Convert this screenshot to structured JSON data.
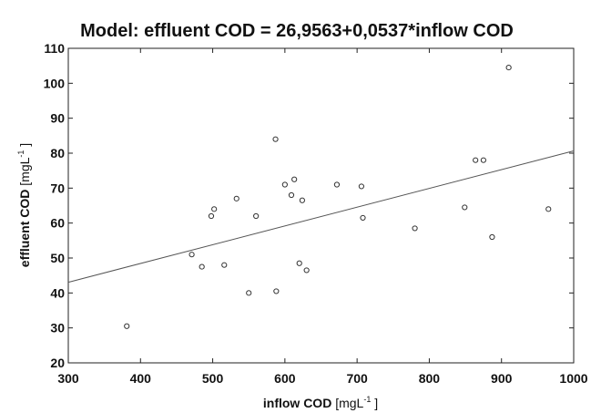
{
  "chart_data": {
    "type": "scatter",
    "title": "Model:  effluent COD = 26,9563+0,0537*inflow COD",
    "xlabel": {
      "main": "inflow COD",
      "unit_pre": " [mgL",
      "unit_sup": "-1",
      "unit_post": " ]"
    },
    "ylabel": {
      "main": "effluent COD",
      "unit_pre": "  [mgL",
      "unit_sup": "-1",
      "unit_post": " ]"
    },
    "xlim": [
      300,
      1000
    ],
    "ylim": [
      20,
      110
    ],
    "xticks": [
      300,
      400,
      500,
      600,
      700,
      800,
      900,
      1000
    ],
    "yticks": [
      20,
      30,
      40,
      50,
      60,
      70,
      80,
      90,
      100,
      110
    ],
    "grid": false,
    "regression": {
      "intercept": 26.9563,
      "slope": 0.0537
    },
    "points": [
      {
        "x": 381,
        "y": 30.5
      },
      {
        "x": 471,
        "y": 51
      },
      {
        "x": 485,
        "y": 47.5
      },
      {
        "x": 498,
        "y": 62
      },
      {
        "x": 502,
        "y": 64
      },
      {
        "x": 516,
        "y": 48
      },
      {
        "x": 533,
        "y": 67
      },
      {
        "x": 550,
        "y": 40
      },
      {
        "x": 560,
        "y": 62
      },
      {
        "x": 587,
        "y": 84
      },
      {
        "x": 588,
        "y": 40.5
      },
      {
        "x": 600,
        "y": 71
      },
      {
        "x": 609,
        "y": 68
      },
      {
        "x": 613,
        "y": 72.5
      },
      {
        "x": 620,
        "y": 48.5
      },
      {
        "x": 624,
        "y": 66.5
      },
      {
        "x": 630,
        "y": 46.5
      },
      {
        "x": 672,
        "y": 71
      },
      {
        "x": 706,
        "y": 70.5
      },
      {
        "x": 708,
        "y": 61.5
      },
      {
        "x": 780,
        "y": 58.5
      },
      {
        "x": 849,
        "y": 64.5
      },
      {
        "x": 864,
        "y": 78
      },
      {
        "x": 875,
        "y": 78
      },
      {
        "x": 887,
        "y": 56
      },
      {
        "x": 910,
        "y": 104.5
      },
      {
        "x": 965,
        "y": 64
      }
    ]
  }
}
